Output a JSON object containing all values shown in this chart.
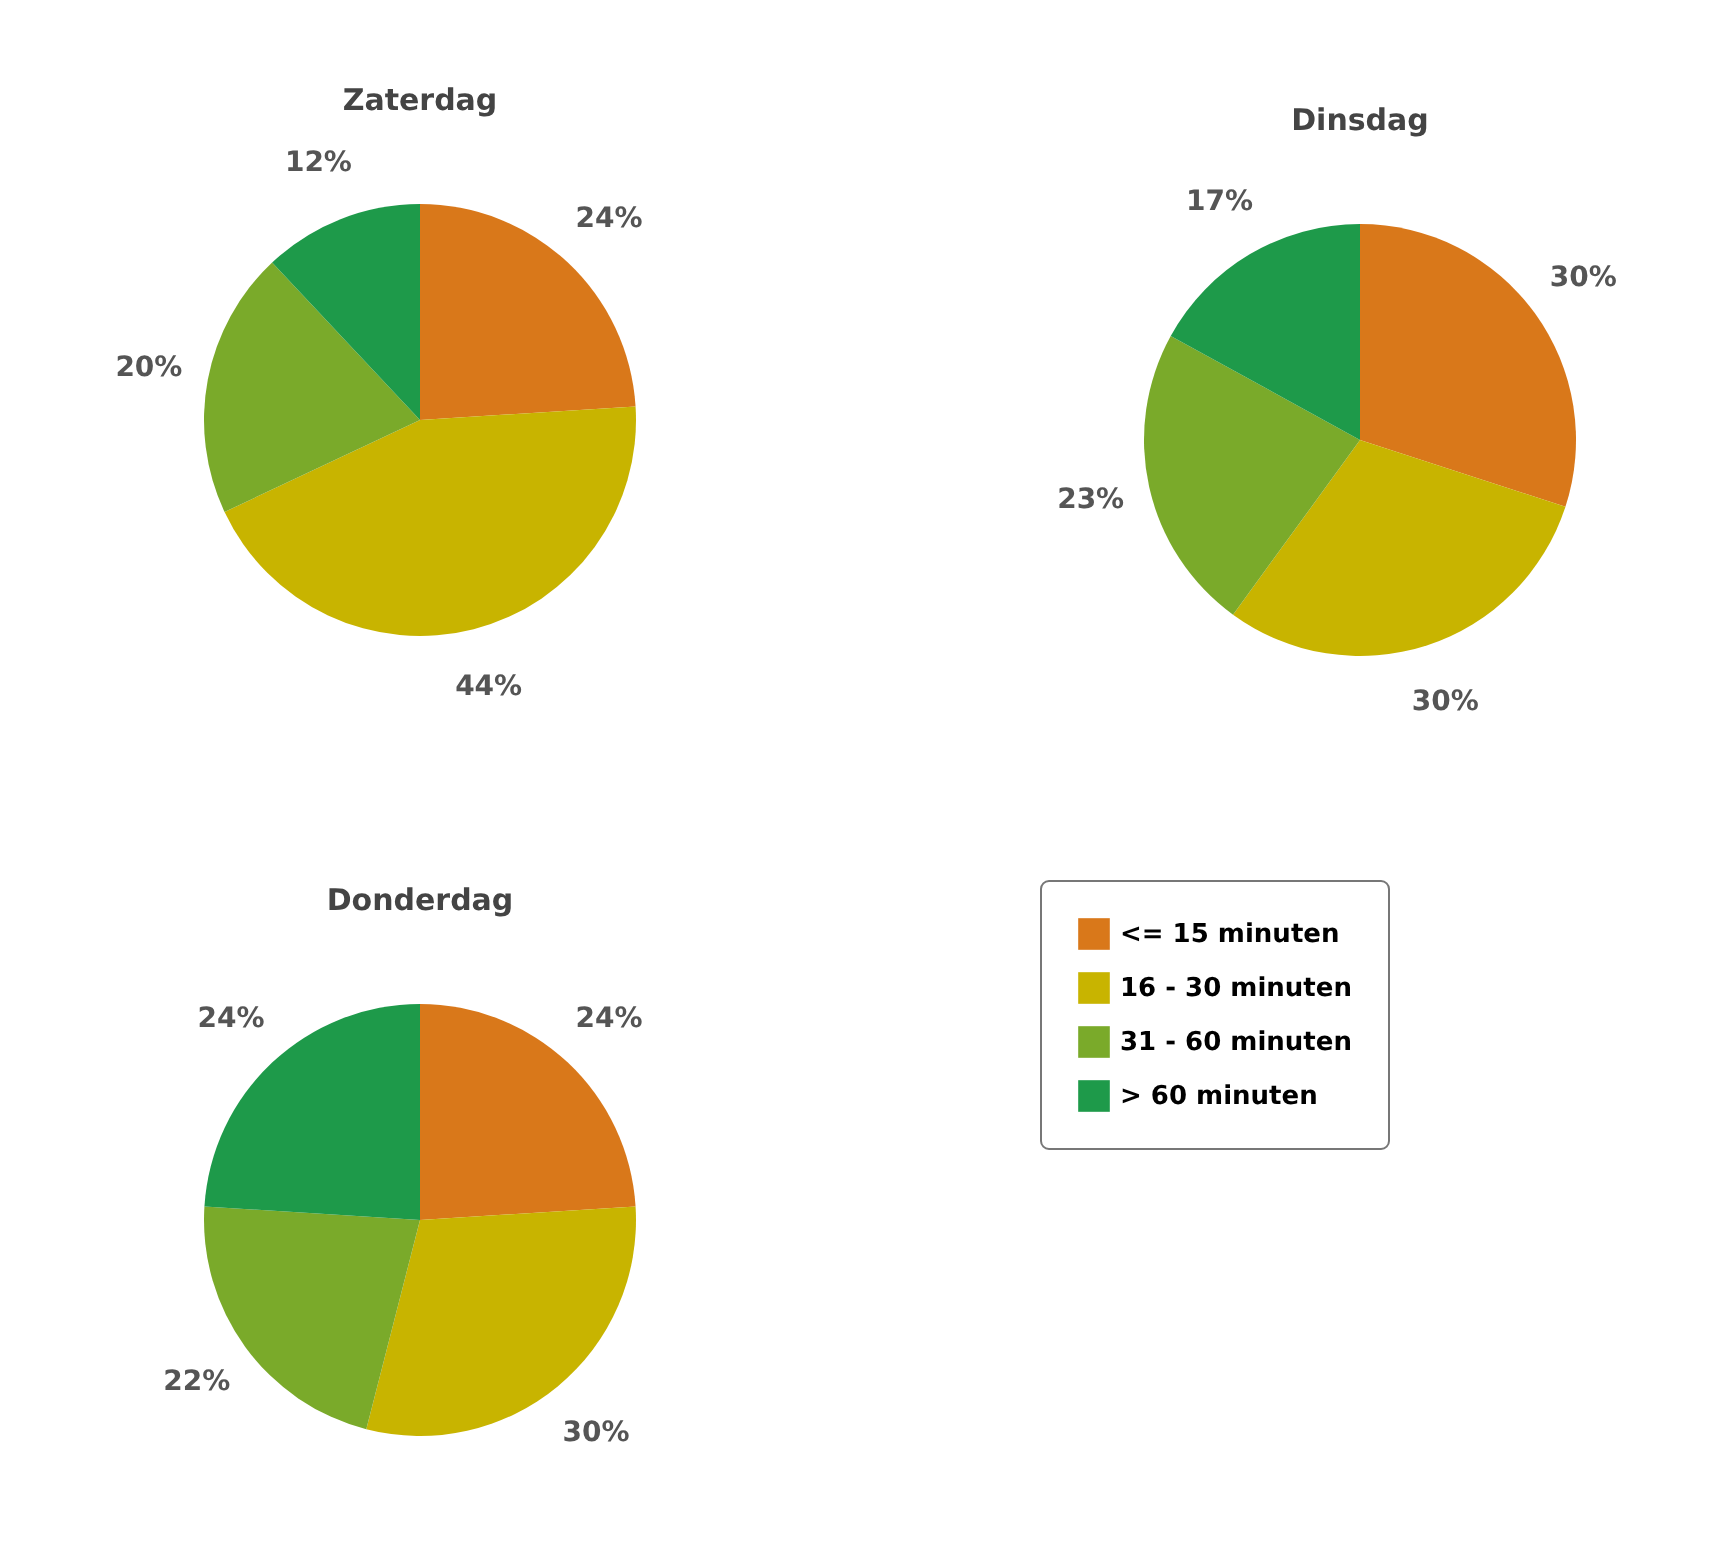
{
  "chart_data": [
    {
      "type": "pie",
      "title": "Zaterdag",
      "categories": [
        "<= 15 minuten",
        "16 - 30 minuten",
        "31 - 60 minuten",
        "> 60 minuten"
      ],
      "values": [
        24,
        44,
        20,
        12
      ],
      "value_labels": [
        "24%",
        "44%",
        "20%",
        "12%"
      ],
      "colors": [
        "#d9781a",
        "#c8b400",
        "#7aaa2a",
        "#1e9a4a"
      ],
      "legend": "bottom right"
    },
    {
      "type": "pie",
      "title": "Dinsdag",
      "categories": [
        null,
        null,
        null,
        null
      ],
      "values": [
        30,
        30,
        23,
        17
      ],
      "value_labels": [
        "30%",
        "30%",
        "23%",
        "17%"
      ],
      "colors": [
        "#d9781a",
        "#c8b400",
        "#7aaa2a",
        "#1e9a4a"
      ],
      "legend": false
    },
    {
      "type": "pie",
      "title": "Donderdag",
      "categories": [
        null,
        null,
        null,
        null
      ],
      "values": [
        24,
        30,
        22,
        24
      ],
      "value_labels": [
        "24%",
        "30%",
        "22%",
        "24%"
      ],
      "colors": [
        "#d9781a",
        "#c8b400",
        "#7aaa2a",
        "#1e9a4a"
      ],
      "legend": false
    }
  ]
}
